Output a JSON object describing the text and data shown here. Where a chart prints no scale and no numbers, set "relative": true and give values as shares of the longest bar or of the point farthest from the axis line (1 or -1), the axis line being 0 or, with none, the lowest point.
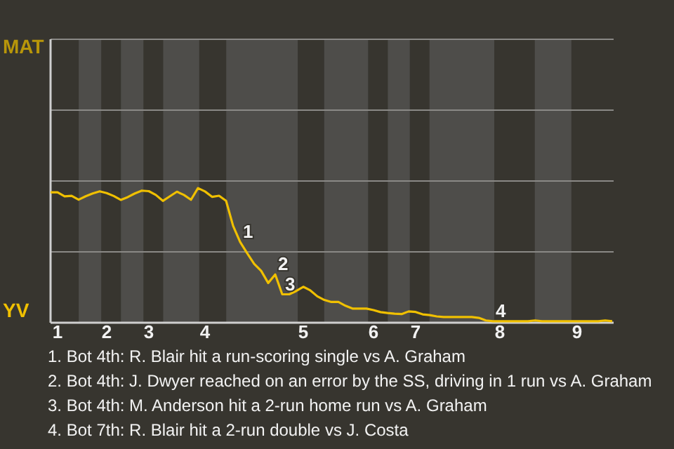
{
  "chart_data": {
    "type": "line",
    "relative": true,
    "categories": [
      null,
      "1",
      null,
      null,
      null,
      null,
      null,
      null,
      "2",
      null,
      null,
      null,
      null,
      null,
      "3",
      null,
      null,
      null,
      null,
      null,
      null,
      null,
      "4",
      null,
      null,
      null,
      null,
      null,
      null,
      null,
      null,
      null,
      null,
      null,
      null,
      null,
      "5",
      null,
      null,
      null,
      null,
      null,
      null,
      null,
      null,
      null,
      "6",
      null,
      null,
      null,
      null,
      null,
      "7",
      null,
      null,
      null,
      null,
      null,
      null,
      null,
      null,
      null,
      null,
      null,
      "8",
      null,
      null,
      null,
      null,
      null,
      null,
      null,
      null,
      null,
      null,
      "9",
      null,
      null,
      null,
      null,
      null
    ],
    "series": [
      {
        "color": "#f0c000",
        "values": [
          0.968,
          0.968,
          0.939,
          0.942,
          0.914,
          0.939,
          0.96,
          0.976,
          0.963,
          0.941,
          0.912,
          0.933,
          0.96,
          0.981,
          0.977,
          0.949,
          0.905,
          0.939,
          0.973,
          0.949,
          0.913,
          1,
          0.975,
          0.935,
          0.943,
          0.905,
          0.72,
          0.6,
          0.516,
          0.437,
          0.385,
          0.295,
          0.358,
          0.211,
          0.211,
          0.236,
          0.267,
          0.24,
          0.196,
          0.169,
          0.154,
          0.154,
          0.126,
          0.105,
          0.105,
          0.105,
          0.094,
          0.079,
          0.072,
          0.067,
          0.064,
          0.084,
          0.08,
          0.062,
          0.057,
          0.047,
          0.042,
          0.042,
          0.042,
          0.042,
          0.042,
          0.036,
          0.017,
          0.011,
          0.011,
          0.011,
          0.011,
          0.011,
          0.011,
          0.017,
          0.011,
          0.011,
          0.011,
          0.011,
          0.011,
          0.011,
          0.011,
          0.011,
          0.011,
          0.017,
          0.011
        ]
      }
    ],
    "ref_lines": [
      {
        "axis": "y",
        "value": 0.526,
        "color": "#8a8986"
      },
      {
        "axis": "y",
        "value": 1.053,
        "color": "#8a8986"
      },
      {
        "axis": "y",
        "value": 1.579,
        "color": "#8a8986"
      }
    ],
    "marker": "none",
    "line_style": "solid",
    "annotations": [
      "MAT",
      "YV",
      {
        "text": "1",
        "y": 0.6
      },
      {
        "text": "2",
        "y": 0.358
      },
      {
        "text": "3",
        "y": 0.211
      },
      {
        "text": "4",
        "y": 0.011
      },
      "1. Bot 4th: R. Blair hit a run-scoring single vs A. Graham",
      "2. Bot 4th: J. Dwyer reached on an error by the SS, driving in 1 run vs A. Graham",
      "3. Bot 4th: M. Anderson hit a 2-run home run vs A. Graham",
      "4. Bot 7th: R. Blair hit a 2-run double vs J. Costa"
    ]
  }
}
